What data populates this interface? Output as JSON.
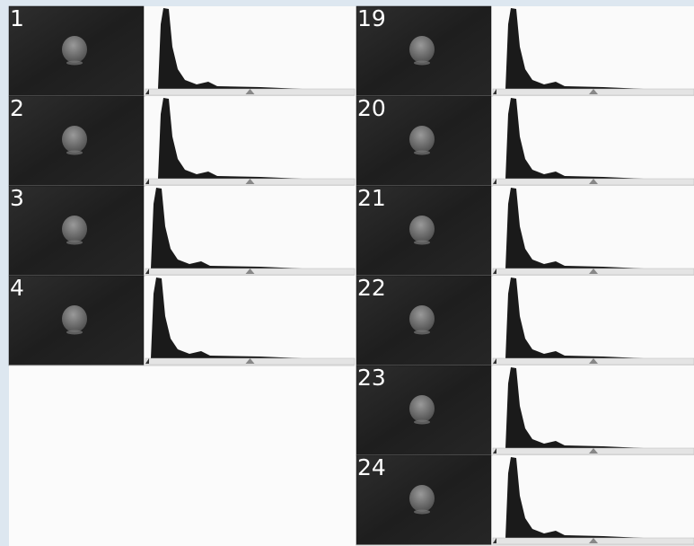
{
  "panels": [
    {
      "label": "1"
    },
    {
      "label": "2"
    },
    {
      "label": "3"
    },
    {
      "label": "4"
    },
    {
      "label": "19"
    },
    {
      "label": "20"
    },
    {
      "label": "21"
    },
    {
      "label": "22"
    },
    {
      "label": "23"
    },
    {
      "label": "24"
    }
  ]
}
